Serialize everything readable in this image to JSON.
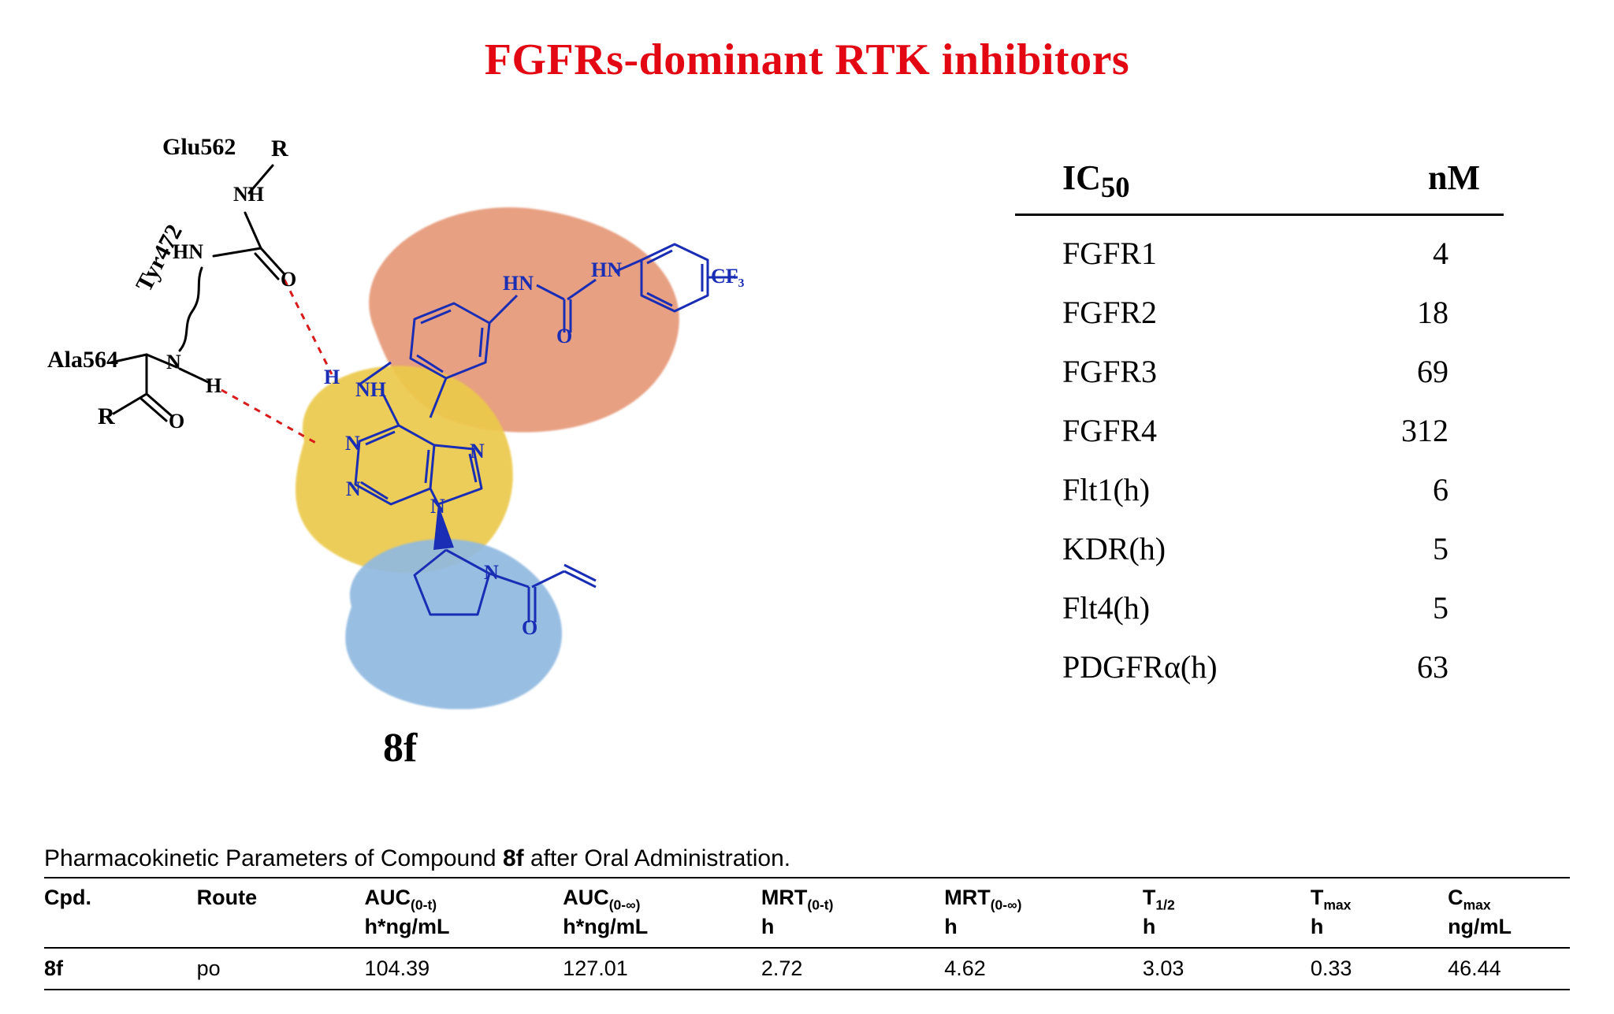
{
  "title": {
    "text": "FGFRs-dominant RTK inhibitors",
    "color": "#e30613",
    "fontsize": 56
  },
  "diagram": {
    "compound_label": "8f",
    "compound_label_fontsize": 52,
    "blobs": {
      "top": {
        "color": "#e59877",
        "opacity": 0.92
      },
      "mid": {
        "color": "#ecc94b",
        "opacity": 0.92
      },
      "bottom": {
        "color": "#8fb9e0",
        "opacity": 0.92
      }
    },
    "residue_labels": {
      "glu562": "Glu562",
      "tyr472": "Tyr472",
      "ala564": "Ala564",
      "R1": "R",
      "R2": "R"
    },
    "backbone_atoms": {
      "NH_top": "NH",
      "HN_left": "HN",
      "O1": "O",
      "N_mid": "N",
      "H_mid": "H",
      "O2": "O",
      "H_core": "H",
      "NH_core": "NH",
      "HN_urea1": "HN",
      "HN_urea2": "HN",
      "O_urea": "O",
      "CF3": "CF₃",
      "N_pyr1": "N",
      "N_pyr2": "N",
      "N_pyr3": "N",
      "N_pyr4": "N",
      "N_ring": "N",
      "O_acryl": "O"
    },
    "colors": {
      "peptide_stroke": "#000000",
      "hbond_stroke": "#d91a1a",
      "core_stroke": "#1a2db5",
      "atom_text_black": "#000000",
      "atom_text_blue": "#1a2db5"
    },
    "label_fontsize": 30,
    "atom_fontsize": 26,
    "line_width_main": 3,
    "hbond_dash": "8 8"
  },
  "ic50_table": {
    "header": {
      "left": "IC",
      "left_sub": "50",
      "right": "nM"
    },
    "header_fontsize": 44,
    "row_fontsize": 40,
    "rows": [
      {
        "k": "FGFR1",
        "v": "4"
      },
      {
        "k": "FGFR2",
        "v": "18"
      },
      {
        "k": "FGFR3",
        "v": "69"
      },
      {
        "k": "FGFR4",
        "v": "312"
      },
      {
        "k": "Flt1(h)",
        "v": "6"
      },
      {
        "k": "KDR(h)",
        "v": "5"
      },
      {
        "k": "Flt4(h)",
        "v": "5"
      },
      {
        "k": "PDGFRα(h)",
        "v": "63"
      }
    ]
  },
  "pk": {
    "caption_prefix": "Pharmacokinetic Parameters of Compound ",
    "caption_bold": "8f",
    "caption_suffix": " after Oral Administration.",
    "columns": [
      {
        "label_html": "Cpd.",
        "unit": ""
      },
      {
        "label_html": "Route",
        "unit": ""
      },
      {
        "label_html": "AUC<sub>(0-t)</sub>",
        "unit": "h*ng/mL"
      },
      {
        "label_html": "AUC<sub>(0-∞)</sub>",
        "unit": "h*ng/mL"
      },
      {
        "label_html": "MRT<sub>(0-t)</sub>",
        "unit": "h"
      },
      {
        "label_html": "MRT<sub>(0-∞)</sub>",
        "unit": "h"
      },
      {
        "label_html": "T<sub>1/2</sub>",
        "unit": "h"
      },
      {
        "label_html": "T<sub>max</sub>",
        "unit": "h"
      },
      {
        "label_html": "C<sub>max</sub>",
        "unit": "ng/mL"
      }
    ],
    "rows": [
      {
        "cells": [
          "8f",
          "po",
          "104.39",
          "127.01",
          "2.72",
          "4.62",
          "3.03",
          "0.33",
          "46.44"
        ],
        "bold_first": true
      }
    ]
  }
}
